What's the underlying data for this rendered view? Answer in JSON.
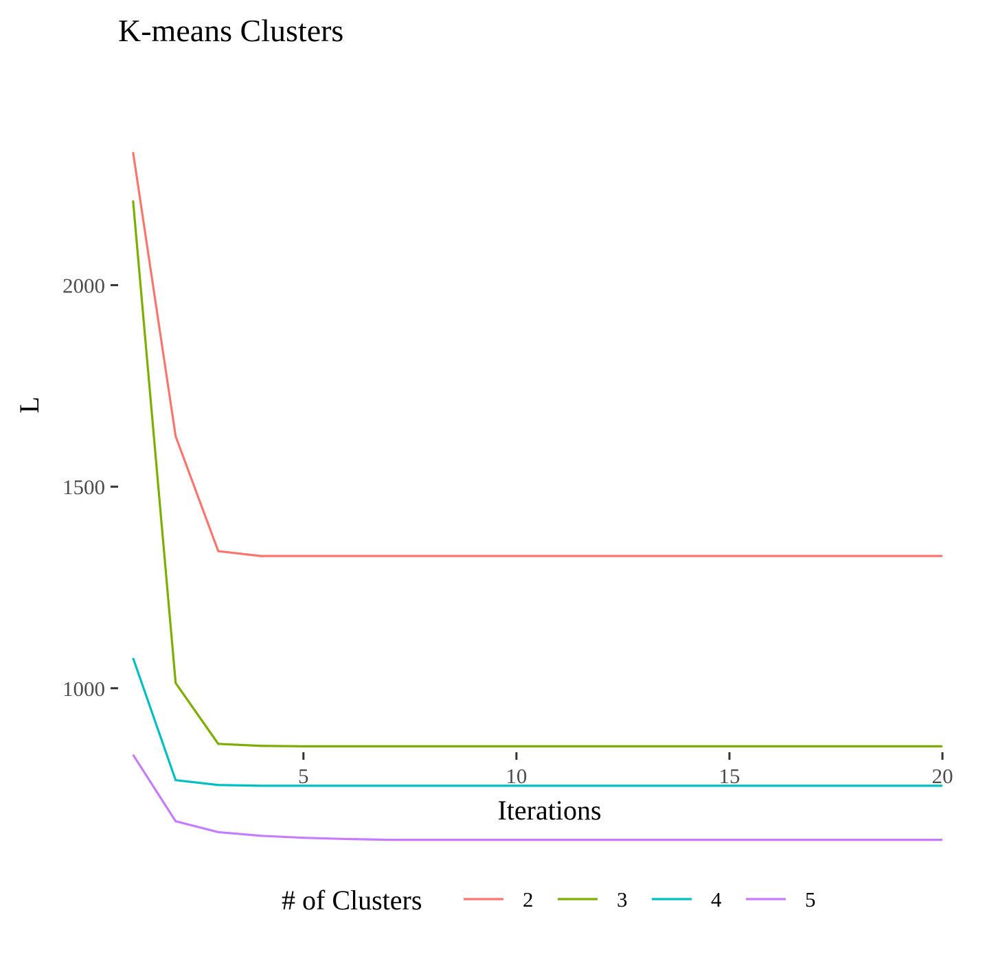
{
  "chart_data": {
    "type": "line",
    "title": "K-means Clusters",
    "xlabel": "Iterations",
    "ylabel": "L",
    "xlim": [
      0.65,
      20.45
    ],
    "ylim": [
      860,
      2520
    ],
    "x_ticks": [
      5,
      10,
      15,
      20
    ],
    "y_ticks": [
      1000,
      1500,
      2000
    ],
    "grid": false,
    "legend": {
      "title": "# of Clusters",
      "position": "bottom"
    },
    "x": [
      1,
      2,
      3,
      4,
      5,
      6,
      7,
      8,
      9,
      10,
      11,
      12,
      13,
      14,
      15,
      16,
      17,
      18,
      19,
      20
    ],
    "series": [
      {
        "name": "2",
        "color": "#F8766D",
        "values": [
          2330,
          1625,
          1340,
          1328,
          1328,
          1328,
          1328,
          1328,
          1328,
          1328,
          1328,
          1328,
          1328,
          1328,
          1328,
          1328,
          1328,
          1328,
          1328,
          1328
        ]
      },
      {
        "name": "3",
        "color": "#7CAE00",
        "values": [
          2210,
          1013,
          862,
          857,
          856,
          856,
          856,
          856,
          856,
          856,
          856,
          856,
          856,
          856,
          856,
          856,
          856,
          856,
          856,
          856
        ]
      },
      {
        "name": "4",
        "color": "#00BFC4",
        "values": [
          1075,
          772,
          760,
          758,
          758,
          758,
          758,
          758,
          758,
          758,
          758,
          758,
          758,
          758,
          758,
          758,
          758,
          758,
          758,
          758
        ]
      },
      {
        "name": "5",
        "color": "#C77CFF",
        "values": [
          835,
          670,
          643,
          634,
          629,
          626,
          624,
          624,
          624,
          624,
          624,
          624,
          624,
          624,
          624,
          624,
          624,
          624,
          624,
          624
        ]
      }
    ]
  }
}
